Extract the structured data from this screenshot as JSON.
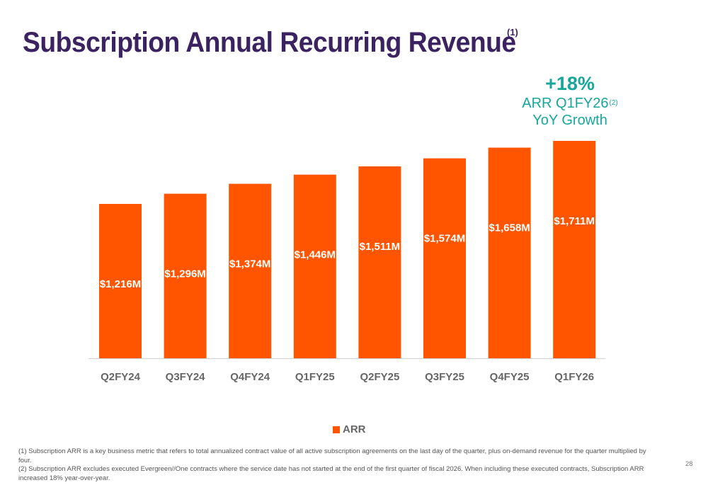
{
  "slide": {
    "title": "Subscription Annual Recurring Revenue",
    "title_note": "(1)",
    "growth": {
      "value": "+18%",
      "line1": "ARR Q1FY26",
      "note": "(2)",
      "line2": "YoY Growth"
    },
    "legend_label": "ARR",
    "footnotes": [
      "(1) Subscription ARR is a key business metric that refers to total annualized contract value of all active subscription agreements on the last day of the quarter, plus on-demand revenue for the quarter multiplied by four.",
      "(2) Subscription ARR excludes executed Evergreen//One contracts where the service date has not started at the end of the first quarter of fiscal 2026. When including these executed contracts, Subscription ARR increased 18% year-over-year."
    ],
    "page_number": "28"
  },
  "chart_data": {
    "type": "bar",
    "categories": [
      "Q2FY24",
      "Q3FY24",
      "Q4FY24",
      "Q1FY25",
      "Q2FY25",
      "Q3FY25",
      "Q4FY25",
      "Q1FY26"
    ],
    "series": [
      {
        "name": "ARR",
        "values": [
          1216,
          1296,
          1374,
          1446,
          1511,
          1574,
          1658,
          1711
        ],
        "labels": [
          "$1,216M",
          "$1,296M",
          "$1,374M",
          "$1,446M",
          "$1,511M",
          "$1,574M",
          "$1,658M",
          "$1,711M"
        ]
      }
    ],
    "ylim": [
      0,
      1711
    ],
    "grid": false,
    "legend": "bottom",
    "colors": {
      "bar": "#ff5500",
      "label": "#ffffff",
      "tick": "#666666",
      "axis": "#d0d0d0"
    }
  }
}
